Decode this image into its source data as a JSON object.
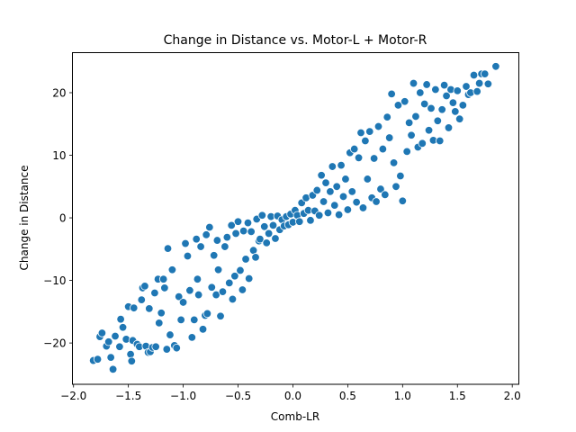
{
  "chart_data": {
    "type": "scatter",
    "title": "Change in Distance vs. Motor-L + Motor-R",
    "xlabel": "Comb-LR",
    "ylabel": "Change in Distance",
    "xlim": [
      -2.01,
      2.06
    ],
    "ylim": [
      -26.6,
      26.4
    ],
    "xticks": [
      -2.0,
      -1.5,
      -1.0,
      -0.5,
      0.0,
      0.5,
      1.0,
      1.5,
      2.0
    ],
    "xtick_labels": [
      "−2.0",
      "−1.5",
      "−1.0",
      "−0.5",
      "0.0",
      "0.5",
      "1.0",
      "1.5",
      "2.0"
    ],
    "yticks": [
      -20,
      -10,
      0,
      10,
      20
    ],
    "ytick_labels": [
      "−20",
      "−10",
      "0",
      "10",
      "20"
    ],
    "grid": false,
    "marker_color": "#1f77b4",
    "points": [
      [
        -1.82,
        -22.8
      ],
      [
        -1.78,
        -22.6
      ],
      [
        -1.76,
        -19
      ],
      [
        -1.74,
        -18.4
      ],
      [
        -1.7,
        -20.5
      ],
      [
        -1.68,
        -19.8
      ],
      [
        -1.66,
        -22.3
      ],
      [
        -1.64,
        -24.2
      ],
      [
        -1.62,
        -18.9
      ],
      [
        -1.58,
        -20.6
      ],
      [
        -1.57,
        -16.2
      ],
      [
        -1.55,
        -17.5
      ],
      [
        -1.52,
        -19.4
      ],
      [
        -1.5,
        -14.2
      ],
      [
        -1.48,
        -21.8
      ],
      [
        -1.47,
        -22.9
      ],
      [
        -1.46,
        -19.6
      ],
      [
        -1.45,
        -14.4
      ],
      [
        -1.42,
        -20.2
      ],
      [
        -1.4,
        -20.6
      ],
      [
        -1.38,
        -13.1
      ],
      [
        -1.37,
        -11.2
      ],
      [
        -1.35,
        -10.9
      ],
      [
        -1.34,
        -20.5
      ],
      [
        -1.32,
        -21.5
      ],
      [
        -1.31,
        -14.5
      ],
      [
        -1.3,
        -21.4
      ],
      [
        -1.28,
        -20.7
      ],
      [
        -1.26,
        -12
      ],
      [
        -1.25,
        -20.6
      ],
      [
        -1.23,
        -9.8
      ],
      [
        -1.22,
        -16.8
      ],
      [
        -1.2,
        -15.2
      ],
      [
        -1.18,
        -9.8
      ],
      [
        -1.17,
        -11.2
      ],
      [
        -1.15,
        -21
      ],
      [
        -1.14,
        -4.9
      ],
      [
        -1.12,
        -18.7
      ],
      [
        -1.1,
        -8.3
      ],
      [
        -1.08,
        -20.4
      ],
      [
        -1.06,
        -20.8
      ],
      [
        -1.04,
        -12.6
      ],
      [
        -1.02,
        -16.3
      ],
      [
        -1,
        -13.5
      ],
      [
        -0.98,
        -4.1
      ],
      [
        -0.96,
        -6.1
      ],
      [
        -0.94,
        -11.6
      ],
      [
        -0.92,
        -19.1
      ],
      [
        -0.9,
        -16.3
      ],
      [
        -0.88,
        -3.4
      ],
      [
        -0.87,
        -9.8
      ],
      [
        -0.86,
        -12.3
      ],
      [
        -0.84,
        -4.6
      ],
      [
        -0.82,
        -17.8
      ],
      [
        -0.8,
        -15.6
      ],
      [
        -0.79,
        -2.7
      ],
      [
        -0.78,
        -15.3
      ],
      [
        -0.76,
        -1.5
      ],
      [
        -0.74,
        -11.1
      ],
      [
        -0.72,
        -6
      ],
      [
        -0.7,
        -12.3
      ],
      [
        -0.69,
        -3.6
      ],
      [
        -0.68,
        -8.3
      ],
      [
        -0.66,
        -15.7
      ],
      [
        -0.64,
        -11.8
      ],
      [
        -0.62,
        -4.6
      ],
      [
        -0.6,
        -3.1
      ],
      [
        -0.58,
        -10.4
      ],
      [
        -0.56,
        -1.2
      ],
      [
        -0.55,
        -13
      ],
      [
        -0.53,
        -9.3
      ],
      [
        -0.52,
        -2.5
      ],
      [
        -0.5,
        -0.6
      ],
      [
        -0.48,
        -8.4
      ],
      [
        -0.46,
        -11.5
      ],
      [
        -0.45,
        -2.1
      ],
      [
        -0.43,
        -6.6
      ],
      [
        -0.41,
        -0.8
      ],
      [
        -0.4,
        -9.7
      ],
      [
        -0.38,
        -2.2
      ],
      [
        -0.36,
        -5.2
      ],
      [
        -0.34,
        -6.3
      ],
      [
        -0.33,
        -0.2
      ],
      [
        -0.31,
        -3.7
      ],
      [
        -0.3,
        -3.4
      ],
      [
        -0.28,
        0.4
      ],
      [
        -0.26,
        -1.4
      ],
      [
        -0.24,
        -4
      ],
      [
        -0.22,
        -2.5
      ],
      [
        -0.2,
        0.2
      ],
      [
        -0.18,
        -1.2
      ],
      [
        -0.16,
        -3.3
      ],
      [
        -0.14,
        0.3
      ],
      [
        -0.12,
        -1.9
      ],
      [
        -0.1,
        -0.3
      ],
      [
        -0.08,
        -1.3
      ],
      [
        -0.06,
        0.2
      ],
      [
        -0.04,
        -1.1
      ],
      [
        -0.02,
        0.6
      ],
      [
        0,
        -0.7
      ],
      [
        0.02,
        1.2
      ],
      [
        0.04,
        0.4
      ],
      [
        0.06,
        -0.6
      ],
      [
        0.08,
        2.4
      ],
      [
        0.1,
        0.7
      ],
      [
        0.12,
        3.2
      ],
      [
        0.14,
        1.2
      ],
      [
        0.16,
        -0.4
      ],
      [
        0.18,
        3.6
      ],
      [
        0.2,
        1.1
      ],
      [
        0.22,
        4.4
      ],
      [
        0.24,
        0.4
      ],
      [
        0.26,
        6.8
      ],
      [
        0.28,
        2.6
      ],
      [
        0.3,
        5.6
      ],
      [
        0.32,
        0.8
      ],
      [
        0.34,
        4.2
      ],
      [
        0.36,
        8.2
      ],
      [
        0.38,
        2
      ],
      [
        0.4,
        5
      ],
      [
        0.42,
        0.5
      ],
      [
        0.44,
        8.4
      ],
      [
        0.46,
        3.4
      ],
      [
        0.48,
        6.2
      ],
      [
        0.5,
        1.3
      ],
      [
        0.52,
        10.4
      ],
      [
        0.54,
        4.2
      ],
      [
        0.56,
        11
      ],
      [
        0.58,
        2.5
      ],
      [
        0.6,
        9.6
      ],
      [
        0.62,
        13.6
      ],
      [
        0.64,
        1.6
      ],
      [
        0.66,
        12.3
      ],
      [
        0.68,
        6.2
      ],
      [
        0.7,
        13.8
      ],
      [
        0.72,
        3.2
      ],
      [
        0.74,
        9.5
      ],
      [
        0.76,
        2.6
      ],
      [
        0.78,
        14.6
      ],
      [
        0.8,
        4.6
      ],
      [
        0.82,
        11
      ],
      [
        0.84,
        3.7
      ],
      [
        0.86,
        16.1
      ],
      [
        0.88,
        12.8
      ],
      [
        0.9,
        19.8
      ],
      [
        0.92,
        8.8
      ],
      [
        0.94,
        5
      ],
      [
        0.96,
        18
      ],
      [
        0.98,
        6.7
      ],
      [
        1,
        2.7
      ],
      [
        1.02,
        18.6
      ],
      [
        1.04,
        10.6
      ],
      [
        1.06,
        15.2
      ],
      [
        1.08,
        13.2
      ],
      [
        1.1,
        21.5
      ],
      [
        1.12,
        16.2
      ],
      [
        1.14,
        11.3
      ],
      [
        1.16,
        20
      ],
      [
        1.18,
        11.9
      ],
      [
        1.2,
        18.2
      ],
      [
        1.22,
        21.3
      ],
      [
        1.24,
        14
      ],
      [
        1.26,
        17.5
      ],
      [
        1.28,
        12.4
      ],
      [
        1.3,
        20.5
      ],
      [
        1.32,
        15.5
      ],
      [
        1.34,
        12.3
      ],
      [
        1.36,
        17.3
      ],
      [
        1.38,
        21.2
      ],
      [
        1.4,
        19.5
      ],
      [
        1.42,
        14.4
      ],
      [
        1.44,
        20.5
      ],
      [
        1.46,
        18.4
      ],
      [
        1.48,
        17
      ],
      [
        1.5,
        20.3
      ],
      [
        1.52,
        15.8
      ],
      [
        1.55,
        18
      ],
      [
        1.58,
        21
      ],
      [
        1.6,
        19.7
      ],
      [
        1.62,
        20
      ],
      [
        1.65,
        22.8
      ],
      [
        1.68,
        20.2
      ],
      [
        1.7,
        21.5
      ],
      [
        1.72,
        23
      ],
      [
        1.75,
        23
      ],
      [
        1.78,
        21.4
      ],
      [
        1.85,
        24.2
      ]
    ]
  }
}
